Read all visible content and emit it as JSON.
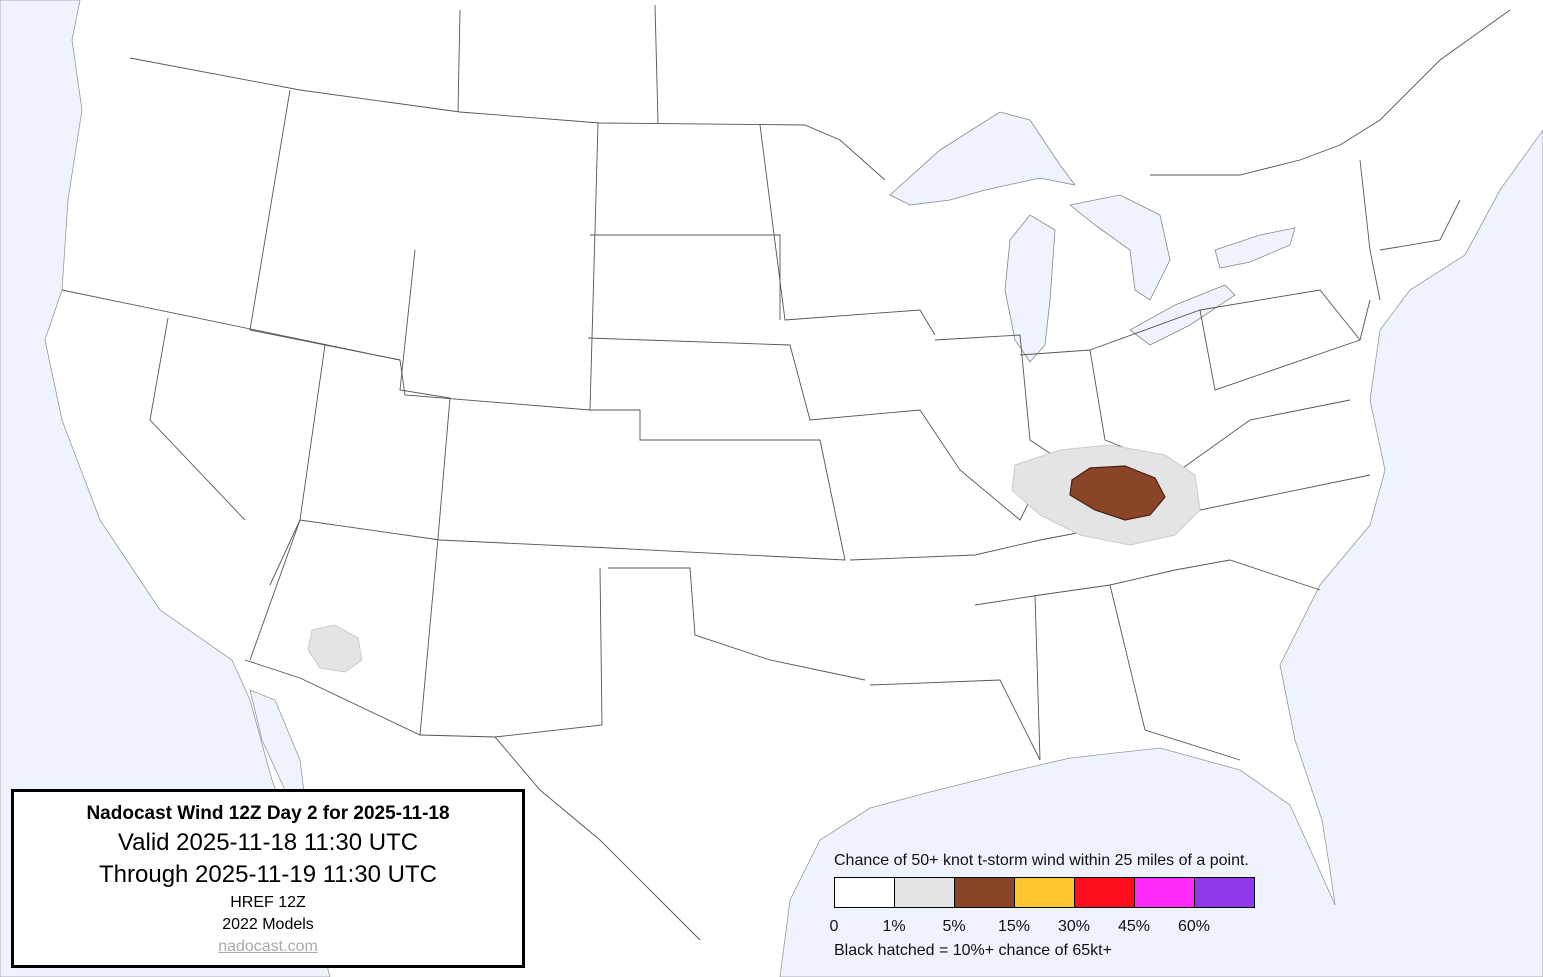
{
  "title_box": {
    "title": "Nadocast Wind 12Z Day 2 for 2025-11-18",
    "valid": "Valid 2025-11-18 11:30 UTC",
    "through": "Through 2025-11-19 11:30 UTC",
    "model": "HREF 12Z",
    "models_year": "2022 Models",
    "site": "nadocast.com"
  },
  "legend": {
    "heading": "Chance of 50+ knot t-storm wind within 25 miles of a point.",
    "bins": [
      {
        "label": "0",
        "color": "#ffffff"
      },
      {
        "label": "1%",
        "color": "#e4e4e4"
      },
      {
        "label": "5%",
        "color": "#8a4528"
      },
      {
        "label": "15%",
        "color": "#ffc62e"
      },
      {
        "label": "30%",
        "color": "#ff0d1b"
      },
      {
        "label": "45%",
        "color": "#ff2bf8"
      },
      {
        "label": "60%",
        "color": "#9038e8"
      }
    ],
    "note": "Black hatched = 10%+ chance of 65kt+"
  },
  "map": {
    "water_color": "#eef3fd",
    "land_color": "#ffffff",
    "forecast_areas": [
      {
        "region": "Ohio Valley / Kentucky-Tennessee",
        "probability": "1%"
      },
      {
        "region": "Kentucky",
        "probability": "5%"
      },
      {
        "region": "Arizona",
        "probability": "1%"
      }
    ]
  }
}
